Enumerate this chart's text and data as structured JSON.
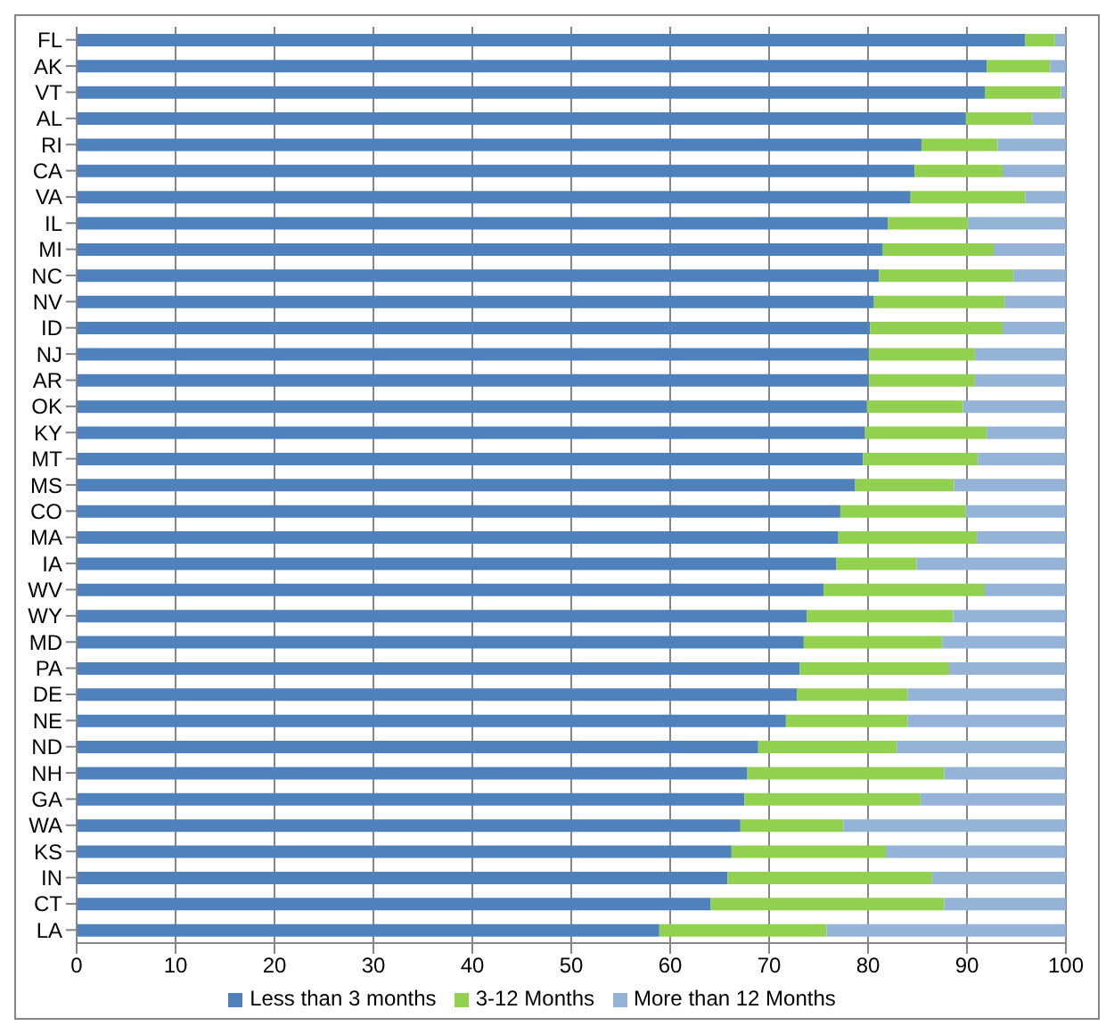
{
  "chart_data": {
    "type": "bar",
    "orientation": "horizontal",
    "stacked": true,
    "categories": [
      "FL",
      "AK",
      "VT",
      "AL",
      "RI",
      "CA",
      "VA",
      "IL",
      "MI",
      "NC",
      "NV",
      "ID",
      "NJ",
      "AR",
      "OK",
      "KY",
      "MT",
      "MS",
      "CO",
      "MA",
      "IA",
      "WV",
      "WY",
      "MD",
      "PA",
      "DE",
      "NE",
      "ND",
      "NH",
      "GA",
      "WA",
      "KS",
      "IN",
      "CT",
      "LA"
    ],
    "series": [
      {
        "name": "Less than 3 months",
        "color": "#4f81bd",
        "values": [
          95.9,
          92.0,
          91.8,
          89.9,
          85.4,
          84.7,
          84.3,
          82.0,
          81.5,
          81.1,
          80.6,
          80.2,
          80.1,
          80.1,
          79.9,
          79.7,
          79.5,
          78.7,
          77.2,
          77.0,
          76.8,
          75.5,
          73.8,
          73.5,
          73.1,
          72.8,
          71.7,
          68.9,
          67.8,
          67.5,
          67.1,
          66.2,
          65.8,
          64.1,
          58.9
        ]
      },
      {
        "name": "3-12 Months",
        "color": "#92d050",
        "values": [
          3.0,
          6.4,
          7.7,
          6.7,
          7.7,
          8.9,
          11.6,
          8.1,
          11.2,
          13.6,
          13.2,
          13.4,
          10.7,
          10.7,
          9.7,
          12.3,
          11.6,
          10.0,
          12.7,
          14.0,
          8.1,
          16.3,
          14.8,
          14.0,
          15.1,
          11.2,
          12.3,
          14.0,
          19.9,
          17.8,
          10.4,
          15.6,
          20.7,
          23.6,
          16.9
        ]
      },
      {
        "name": "More than 12 Months",
        "color": "#95b3d7",
        "values": [
          1.1,
          1.6,
          0.5,
          3.4,
          6.9,
          6.4,
          4.1,
          9.9,
          7.3,
          5.3,
          6.2,
          6.4,
          9.2,
          9.2,
          10.4,
          8.0,
          8.9,
          11.3,
          10.1,
          9.0,
          15.1,
          8.2,
          11.4,
          12.5,
          11.8,
          16.0,
          16.0,
          17.1,
          12.3,
          14.7,
          22.5,
          18.2,
          13.5,
          12.3,
          24.2
        ]
      }
    ],
    "xlim": [
      0,
      100
    ],
    "xticks": [
      0,
      10,
      20,
      30,
      40,
      50,
      60,
      70,
      80,
      90,
      100
    ],
    "grid": "x",
    "legend": "bottom"
  }
}
